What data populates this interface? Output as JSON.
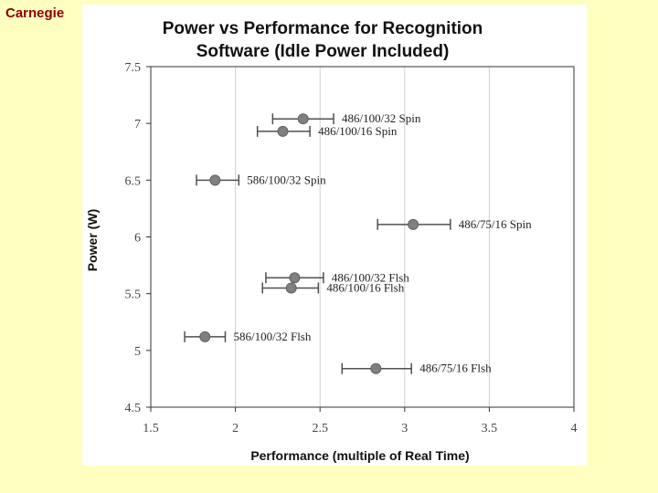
{
  "header": {
    "text": "Carnegie"
  },
  "chart_data": {
    "type": "scatter",
    "title": "Power vs Performance for Recognition Software (Idle Power Included)",
    "title_lines": [
      "Power vs Performance for Recognition",
      "Software (Idle Power Included)"
    ],
    "xlabel": "Performance  (multiple  of  Real  Time)",
    "ylabel": "Power  (W)",
    "xlim": [
      1.5,
      4
    ],
    "ylim": [
      4.5,
      7.5
    ],
    "x_ticks": [
      "1.5",
      "2",
      "2.5",
      "3",
      "3.5",
      "4"
    ],
    "y_ticks": [
      "7.5",
      "7",
      "6.5",
      "6",
      "5.5",
      "5",
      "4.5"
    ],
    "grid": "vertical",
    "points": [
      {
        "label": "486/100/32  Spin",
        "x": 2.4,
        "y": 7.04,
        "xerr": [
          2.22,
          2.58
        ]
      },
      {
        "label": "486/100/16  Spin",
        "x": 2.28,
        "y": 6.93,
        "xerr": [
          2.13,
          2.44
        ]
      },
      {
        "label": "586/100/32  Spin",
        "x": 1.88,
        "y": 6.5,
        "xerr": [
          1.77,
          2.02
        ]
      },
      {
        "label": "486/75/16  Spin",
        "x": 3.05,
        "y": 6.11,
        "xerr": [
          2.84,
          3.27
        ]
      },
      {
        "label": "486/100/32  Flsh",
        "x": 2.35,
        "y": 5.64,
        "xerr": [
          2.18,
          2.52
        ]
      },
      {
        "label": "486/100/16  Flsh",
        "x": 2.33,
        "y": 5.55,
        "xerr": [
          2.16,
          2.49
        ]
      },
      {
        "label": "586/100/32  Flsh",
        "x": 1.82,
        "y": 5.12,
        "xerr": [
          1.7,
          1.94
        ]
      },
      {
        "label": "486/75/16  Flsh",
        "x": 2.83,
        "y": 4.84,
        "xerr": [
          2.63,
          3.04
        ]
      }
    ],
    "colors": {
      "marker": "#808080",
      "errorbar": "#505050",
      "axis": "#333333",
      "grid": "#d0d0d0"
    }
  }
}
